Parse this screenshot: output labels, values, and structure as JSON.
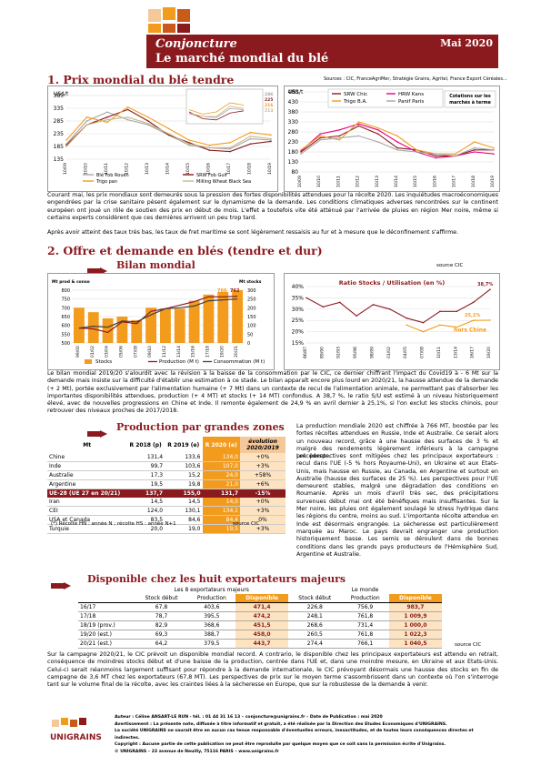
{
  "header": {
    "kicker": "Conjoncture",
    "title": "Le marché mondial du blé",
    "date": "Mai 2020"
  },
  "section1": {
    "title": "1. Prix mondial du blé tendre",
    "sources": "Sources : CIC, FranceAgriMer, Stratégie Grains, Agritel, France Export Céréales..."
  },
  "section2": {
    "title": "2. Offre et demande en blés (tendre et dur)",
    "sub": "Bilan mondial",
    "source": "source CIC"
  },
  "para1": "Courant mai, les prix mondiaux sont demeurés sous la pression des fortes disponibilités attendues pour la récolte 2020. Les inquiétudes macroéconomiques engendrées par la crise sanitaire pèsent également sur le dynamisme de la demande. Les conditions climatiques adverses rencontrées sur le continent européen ont joué un rôle de soutien des prix en début de mois. L'effet a toutefois vite été atténué par l'arrivée de pluies en région Mer noire, même si certains experts considèrent que ces dernières arrivent un peu trop tard.",
  "para2": "Après avoir atteint des taux très bas, les taux de fret maritime se sont légèrement ressaisis au fur et à mesure que le déconfinement s'affirme.",
  "para3": "Le bilan mondial 2019/20 s'alourdit avec la révision à la baisse de la consommation par le CIC, ce dernier chiffrant l'impact du Covid19 à - 6 Mt sur la demande mais insiste sur la difficulté d'établir une estimation à ce stade. Le bilan apparaît encore plus lourd en 2020/21, la hausse attendue de la demande (+ 2 Mt), portée exclusivement par l'alimentation humaine (+ 7 Mt) dans un contexte de recul de l'alimentation animale, ne permettant pas d'absorber les importantes disponibilités attendues, production (+ 4 MT) et stocks (+ 14 MT) confondus. A 38,7 %, le ratio S/U est estimé à un niveau historiquement élevé, avec de nouvelles progressions en Chine et Inde. Il remonte également de 24,9 % en avril dernier à 25,1%, si l'on exclut les stocks chinois, pour retrouver des niveaux proches de 2017/2018.",
  "para4": "La production mondiale 2020 est chiffrée à 766 MT, boostée par les fortes récoltes attendues en Russie, Inde et Australie. Ce serait alors un nouveau record, grâce à une hausse des surfaces de 3 % et malgré des rendements légèrement inférieurs à la campagne précédente.",
  "para5": "Les perspectives sont mitigées chez les principaux exportateurs : recul dans l'UE (-5 % hors Royaume-Uni), en Ukraine et aux Etats-Unis, mais hausse en Russie, au Canada, en Argentine et surtout en Australie (hausse des surfaces de 25 %). Les perspectives pour l'UE demeurent stables, malgré une dégradation des conditions en Roumanie. Après un mois d'avril très sec, des précipitations survenues début mai ont été bénéfiques mais insuffisantes. Sur la Mer noire, les pluies ont également soulagé le stress hydrique dans les régions du centre, moins au sud. L'importante récolte attendue en Inde est désormais engrangée. La sécheresse est particulièrement marquée au Maroc. Le pays devrait engranger une production historiquement basse. Les semis se déroulent dans de bonnes conditions dans les grands pays producteurs de l'Hémisphère Sud, Argentine et Australie.",
  "para6": "Sur la campagne 2020/21, le CIC prévoit un disponible mondial record. A contrario, le disponible chez les principaux exportateurs est attendu en retrait, conséquence de moindres stocks début et d'une baisse de la production, centrée dans l'UE et, dans une moindre mesure, en Ukraine et aux Etats-Unis. Celui-ci serait néanmoins largement suffisant pour répondre à la demande internationale, le CIC prévoyant désormais une hausse des stocks en fin de campagne de 3,6 MT chez les exportateurs (67,8 MT). Les perspectives de prix sur le moyen terme s'assombrissent dans un contexte où l'on s'interroge tant sur le volume final de la récolte, avec les craintes liées à la sécheresse en Europe, que sur la robustesse de la demande à venir.",
  "prod_table": {
    "title": "Production par grandes zones",
    "headers": [
      "Mt",
      "R 2018 (p)",
      "R 2019 (e)",
      "R 2020 (e)",
      "évolution 2020/2019"
    ],
    "rows": [
      [
        "Chine",
        "131,4",
        "133,6",
        "134,0",
        "+0%"
      ],
      [
        "Inde",
        "99,7",
        "103,6",
        "107,0",
        "+3%"
      ],
      [
        "Australie",
        "17,3",
        "15,2",
        "24,0",
        "+58%"
      ],
      [
        "Argentine",
        "19,5",
        "19,8",
        "21,0",
        "+6%"
      ],
      [
        "UE-28 (UE 27 en 20/21)",
        "137,7",
        "155,0",
        "131,7",
        "-15%"
      ],
      [
        "Iran",
        "14,5",
        "14,5",
        "14,5",
        "+0%"
      ],
      [
        "CEI",
        "124,0",
        "130,1",
        "134,1",
        "+3%"
      ],
      [
        "USA et Canada",
        "83,5",
        "84,6",
        "84,4",
        "0%"
      ],
      [
        "Turquie",
        "20,0",
        "19,0",
        "19,5",
        "+3%"
      ]
    ],
    "note": "(*) Récolte HN : année N ; récolte HS : année N+1",
    "source": "source CIC"
  },
  "dispo_table": {
    "title": "Disponible chez les huit exportateurs majeurs",
    "group1": "Les 8 exportateurs majeurs",
    "group2": "Le monde",
    "headers": [
      "",
      "Stock début",
      "Production",
      "Disponible",
      "Stock début",
      "Production",
      "Disponible"
    ],
    "rows": [
      [
        "16/17",
        "67,8",
        "403,6",
        "471,4",
        "226,8",
        "756,9",
        "983,7"
      ],
      [
        "17/18",
        "78,7",
        "395,5",
        "474,2",
        "248,1",
        "761,8",
        "1 009,9"
      ],
      [
        "18/19 (prov.)",
        "82,9",
        "368,6",
        "451,5",
        "268,6",
        "731,4",
        "1 000,0"
      ],
      [
        "19/20 (est.)",
        "69,3",
        "388,7",
        "458,0",
        "260,5",
        "761,8",
        "1 022,3"
      ],
      [
        "20/21 (est.)",
        "64,2",
        "379,5",
        "443,7",
        "274,4",
        "766,1",
        "1 040,5"
      ]
    ],
    "source": "source CIC"
  },
  "chart_data": [
    {
      "type": "line",
      "title": "",
      "ylabel": "US$/t",
      "x": [
        "10/09",
        "10/10",
        "10/11",
        "10/12",
        "10/13",
        "10/14",
        "10/15",
        "10/16",
        "10/17",
        "10/18",
        "10/19"
      ],
      "ylim": [
        135,
        385
      ],
      "yticks": [
        135,
        185,
        235,
        285,
        335,
        385
      ],
      "series": [
        {
          "name": "Blé Fob Rouen",
          "color": "#a6a6a6",
          "values": [
            195,
            285,
            320,
            290,
            270,
            230,
            190,
            180,
            175,
            215,
            210
          ]
        },
        {
          "name": "SRW Fob Gulf",
          "color": "#8b1a1f",
          "values": [
            190,
            270,
            300,
            330,
            285,
            230,
            200,
            170,
            165,
            195,
            205
          ]
        },
        {
          "name": "Trigo pan",
          "color": "#f39b1c",
          "values": [
            210,
            300,
            280,
            340,
            300,
            255,
            210,
            190,
            200,
            240,
            230
          ]
        },
        {
          "name": "Milling Wheat Black Sea",
          "color": "#c8b88a",
          "values": [
            185,
            270,
            290,
            300,
            275,
            235,
            195,
            180,
            180,
            225,
            215
          ]
        }
      ],
      "inset_labels": [
        "196",
        "225",
        "216",
        "213"
      ]
    },
    {
      "type": "line",
      "title": "",
      "ylabel": "US$/t",
      "x": [
        "10/09",
        "10/10",
        "10/11",
        "10/12",
        "10/13",
        "10/14",
        "10/15",
        "10/16",
        "10/17",
        "10/18",
        "10/19"
      ],
      "ylim": [
        80,
        480
      ],
      "yticks": [
        80,
        130,
        180,
        230,
        280,
        330,
        380,
        430,
        480
      ],
      "series": [
        {
          "name": "SRW Chic",
          "color": "#8b1a1f",
          "values": [
            180,
            250,
            260,
            310,
            270,
            200,
            190,
            160,
            160,
            190,
            190
          ]
        },
        {
          "name": "HRW Kans",
          "color": "#e6007e",
          "values": [
            185,
            270,
            290,
            320,
            290,
            230,
            180,
            150,
            160,
            180,
            170
          ]
        },
        {
          "name": "Trigo B.A.",
          "color": "#f39b1c",
          "values": [
            190,
            260,
            240,
            330,
            300,
            260,
            190,
            170,
            170,
            230,
            200
          ]
        },
        {
          "name": "Panif Paris",
          "color": "#a6a6a6",
          "values": [
            170,
            240,
            250,
            260,
            230,
            190,
            180,
            170,
            160,
            200,
            190
          ]
        }
      ],
      "legend_note": "Cotations sur les marchés à terme"
    },
    {
      "type": "bar",
      "title": "",
      "ylabel": "Mt prod & conso",
      "y2label": "Mt stocks",
      "categories": [
        "99/00",
        "01/02",
        "03/04",
        "05/06",
        "07/08",
        "09/10",
        "11/12",
        "13/14",
        "15/16",
        "17/18",
        "19/20",
        "20/21"
      ],
      "ylim": [
        500,
        800
      ],
      "y2lim": [
        0,
        300
      ],
      "series": [
        {
          "name": "Stocks",
          "color": "#f39b1c",
          "values": [
            200,
            175,
            140,
            150,
            130,
            200,
            195,
            195,
            240,
            275,
            290,
            300
          ]
        },
        {
          "name": "Production (M t)",
          "color": "#8b1a1f",
          "values": [
            585,
            580,
            560,
            620,
            610,
            680,
            695,
            715,
            735,
            763,
            762,
            766
          ]
        },
        {
          "name": "Consommation (M t)",
          "color": "#404040",
          "values": [
            585,
            595,
            590,
            625,
            620,
            660,
            695,
            700,
            710,
            740,
            745,
            750
          ]
        }
      ],
      "labels": [
        "766",
        "762"
      ]
    },
    {
      "type": "line",
      "title": "Ratio Stocks / Utilisation (en %)",
      "x": [
        "86/87",
        "89/90",
        "92/93",
        "95/96",
        "98/99",
        "01/02",
        "04/05",
        "07/08",
        "10/11",
        "13/14",
        "16/17",
        "19/20"
      ],
      "ylim": [
        15,
        40
      ],
      "yticks": [
        15,
        20,
        25,
        30,
        35,
        40
      ],
      "series": [
        {
          "name": "",
          "color": "#8b1a1f",
          "values": [
            35,
            31,
            33,
            27,
            32,
            30,
            26,
            24,
            29,
            29,
            33,
            38.7
          ]
        },
        {
          "name": "hors Chine",
          "color": "#f39b1c",
          "values": [
            null,
            null,
            null,
            null,
            null,
            null,
            23,
            20,
            23,
            22,
            25,
            25.1
          ]
        }
      ],
      "labels": [
        "38,7%",
        "25,1%"
      ]
    }
  ],
  "logo": {
    "name": "UNIGRAINS"
  },
  "footer": {
    "l1": "Auteur : Céline ANSART-LE RUN - tél. : 01 44 31 16 13 – conjoncture@unigrains.fr – Date de Publication : mai 2020",
    "l2": "Avertissement : La présente note, diffusée à titre informatif et gratuit, a été réalisée par la Direction des Etudes Economiques d'UNIGRAINS.",
    "l3": "La société UNIGRAINS ne saurait être en aucun cas tenue responsable d'éventuelles erreurs, inexactitudes, et de toutes leurs conséquences directes et indirectes.",
    "l4": "Copyright : Aucune partie de cette publication ne peut être reproduite par quelque moyen que ce soit sans la permission écrite d'Unigrains.",
    "l5": "© UNIGRAINS – 23 avenue de Neuilly, 75116 PARIS – www.unigrains.fr"
  }
}
